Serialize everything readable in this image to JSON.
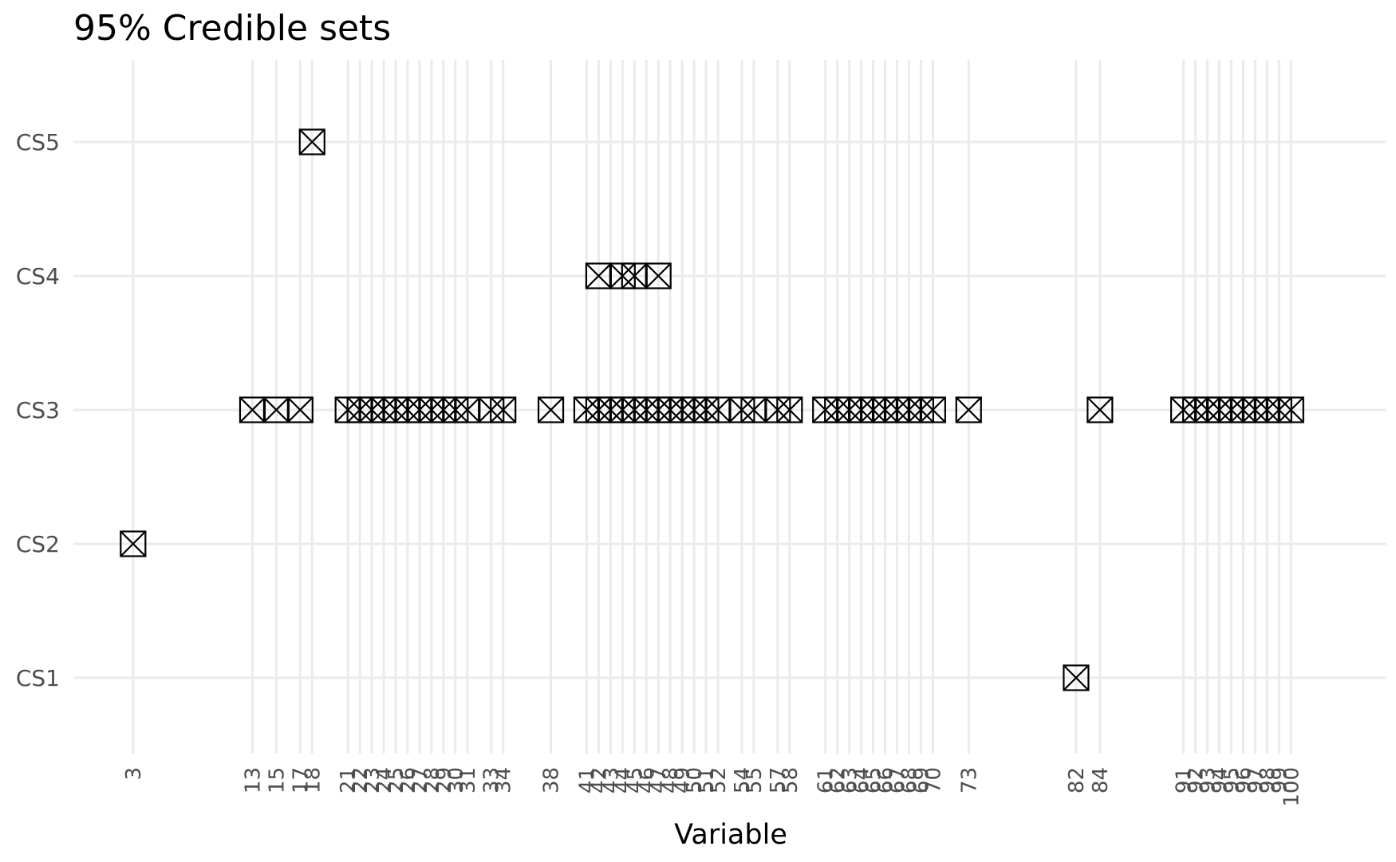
{
  "chart_data": {
    "type": "scatter",
    "title": "95% Credible sets",
    "xlabel": "Variable",
    "ylabel": "",
    "y_categories": [
      "CS1",
      "CS2",
      "CS3",
      "CS4",
      "CS5"
    ],
    "x_ticks": [
      3,
      13,
      15,
      17,
      18,
      21,
      22,
      23,
      24,
      25,
      26,
      27,
      28,
      29,
      30,
      31,
      33,
      34,
      38,
      41,
      42,
      43,
      44,
      45,
      46,
      47,
      48,
      49,
      50,
      51,
      52,
      54,
      55,
      57,
      58,
      61,
      62,
      63,
      64,
      65,
      66,
      67,
      68,
      69,
      70,
      73,
      82,
      84,
      91,
      92,
      93,
      94,
      95,
      96,
      97,
      98,
      99,
      100
    ],
    "xlim": [
      -2,
      108
    ],
    "marker": "square-x",
    "grid": true,
    "legend": "none",
    "series": [
      {
        "name": "CS1",
        "x": [
          82
        ]
      },
      {
        "name": "CS2",
        "x": [
          3
        ]
      },
      {
        "name": "CS3",
        "x": [
          13,
          15,
          17,
          21,
          22,
          23,
          24,
          25,
          26,
          27,
          28,
          29,
          30,
          31,
          33,
          34,
          38,
          41,
          42,
          43,
          44,
          45,
          46,
          47,
          48,
          49,
          50,
          51,
          52,
          54,
          55,
          57,
          58,
          61,
          62,
          63,
          64,
          65,
          66,
          67,
          68,
          69,
          70,
          73,
          84,
          91,
          92,
          93,
          94,
          95,
          96,
          97,
          98,
          99,
          100
        ]
      },
      {
        "name": "CS4",
        "x": [
          42,
          44,
          45,
          47
        ]
      },
      {
        "name": "CS5",
        "x": [
          18
        ]
      }
    ]
  }
}
